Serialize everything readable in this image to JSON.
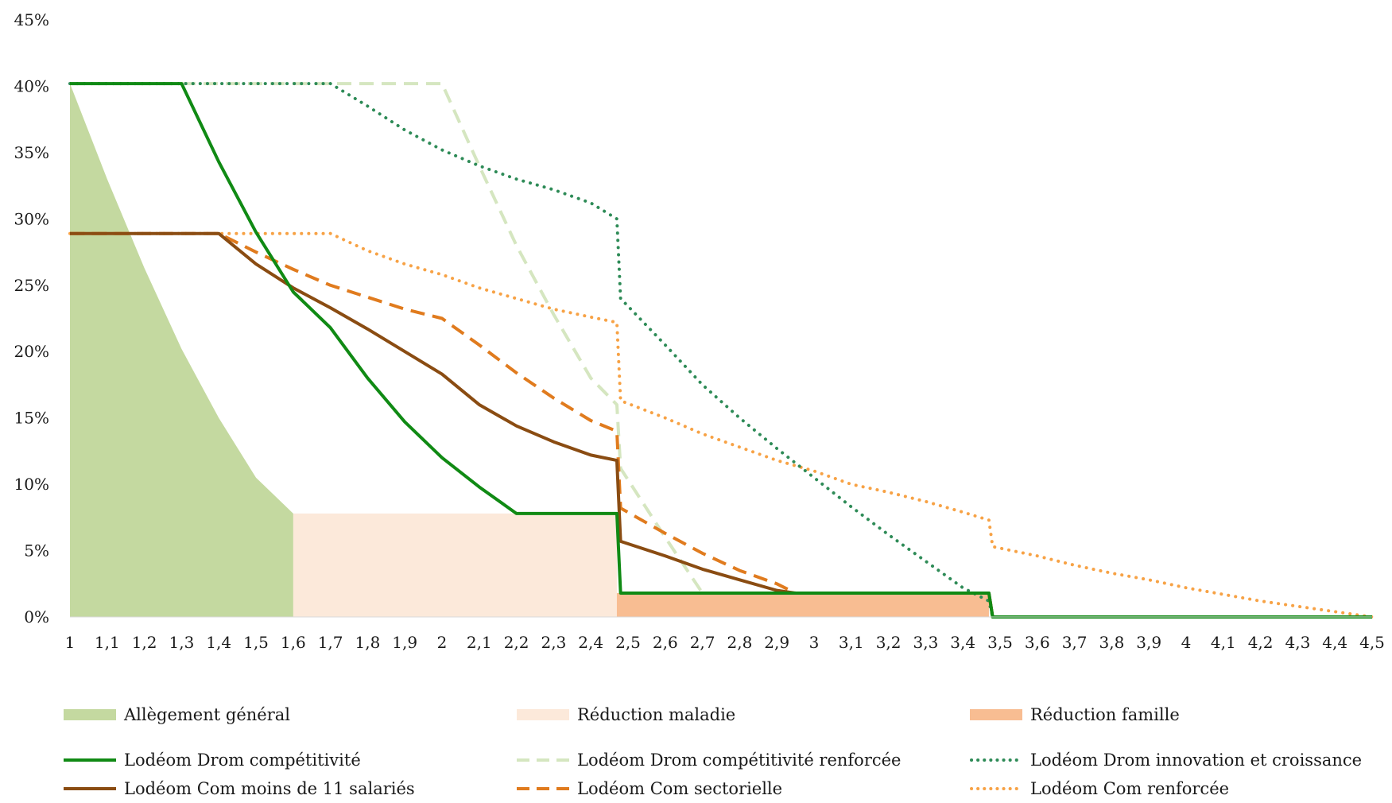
{
  "chart_data": {
    "type": "line",
    "title": "",
    "xlabel": "",
    "ylabel": "",
    "xlim": [
      1,
      4.5
    ],
    "ylim": [
      0,
      0.45
    ],
    "x_ticks": [
      "1",
      "1,1",
      "1,2",
      "1,3",
      "1,4",
      "1,5",
      "1,6",
      "1,7",
      "1,8",
      "1,9",
      "2",
      "2,1",
      "2,2",
      "2,3",
      "2,4",
      "2,5",
      "2,6",
      "2,7",
      "2,8",
      "2,9",
      "3",
      "3,1",
      "3,2",
      "3,3",
      "3,4",
      "3,5",
      "3,6",
      "3,7",
      "3,8",
      "3,9",
      "4",
      "4,1",
      "4,2",
      "4,3",
      "4,4",
      "4,5"
    ],
    "y_ticks": [
      "0%",
      "5%",
      "10%",
      "15%",
      "20%",
      "25%",
      "30%",
      "35%",
      "40%",
      "45%"
    ],
    "y_tick_values": [
      0,
      0.05,
      0.1,
      0.15,
      0.2,
      0.25,
      0.3,
      0.35,
      0.4,
      0.45
    ],
    "grid": false,
    "legend_position": "bottom",
    "areas": [
      {
        "name": "Réduction famille",
        "color": "#f8bd92",
        "points": [
          [
            1,
            0.018
          ],
          [
            2.47,
            0.018
          ],
          [
            2.47,
            0.018
          ],
          [
            3.47,
            0.018
          ],
          [
            3.47,
            0
          ]
        ]
      },
      {
        "name": "Réduction maladie",
        "color": "#fce9da",
        "points": [
          [
            1,
            0.078
          ],
          [
            2.47,
            0.078
          ],
          [
            2.47,
            0.018
          ]
        ]
      },
      {
        "name": "Allègement général",
        "color": "#c4d9a0",
        "points": [
          [
            1,
            0.402
          ],
          [
            1.1,
            0.33
          ],
          [
            1.2,
            0.263
          ],
          [
            1.3,
            0.202
          ],
          [
            1.4,
            0.15
          ],
          [
            1.5,
            0.105
          ],
          [
            1.6,
            0.078
          ]
        ]
      }
    ],
    "series": [
      {
        "name": "Lodéom Drom compétitivité",
        "color": "#108a14",
        "style": "solid",
        "points": [
          [
            1,
            0.402
          ],
          [
            1.3,
            0.402
          ],
          [
            1.4,
            0.343
          ],
          [
            1.5,
            0.29
          ],
          [
            1.6,
            0.245
          ],
          [
            1.7,
            0.218
          ],
          [
            1.8,
            0.18
          ],
          [
            1.9,
            0.147
          ],
          [
            2,
            0.12
          ],
          [
            2.1,
            0.098
          ],
          [
            2.2,
            0.078
          ],
          [
            2.47,
            0.078
          ],
          [
            2.48,
            0.018
          ],
          [
            3.47,
            0.018
          ],
          [
            3.48,
            0
          ],
          [
            4.5,
            0
          ]
        ]
      },
      {
        "name": "Lodéom Drom compétitivité renforcée",
        "color": "#d5e6c0",
        "style": "dashed",
        "points": [
          [
            1,
            0.402
          ],
          [
            2,
            0.402
          ],
          [
            2.1,
            0.34
          ],
          [
            2.2,
            0.28
          ],
          [
            2.3,
            0.228
          ],
          [
            2.4,
            0.18
          ],
          [
            2.47,
            0.16
          ],
          [
            2.48,
            0.112
          ],
          [
            2.6,
            0.06
          ],
          [
            2.7,
            0.018
          ],
          [
            3.47,
            0.018
          ],
          [
            3.48,
            0
          ],
          [
            4.5,
            0
          ]
        ]
      },
      {
        "name": "Lodéom Drom innovation et croissance",
        "color": "#2e8b57",
        "style": "dotted",
        "points": [
          [
            1,
            0.402
          ],
          [
            1.7,
            0.402
          ],
          [
            1.8,
            0.385
          ],
          [
            1.9,
            0.367
          ],
          [
            2,
            0.352
          ],
          [
            2.1,
            0.34
          ],
          [
            2.2,
            0.33
          ],
          [
            2.3,
            0.322
          ],
          [
            2.4,
            0.312
          ],
          [
            2.47,
            0.3
          ],
          [
            2.48,
            0.24
          ],
          [
            2.6,
            0.205
          ],
          [
            2.7,
            0.175
          ],
          [
            2.8,
            0.15
          ],
          [
            2.9,
            0.127
          ],
          [
            3,
            0.105
          ],
          [
            3.1,
            0.083
          ],
          [
            3.2,
            0.062
          ],
          [
            3.3,
            0.042
          ],
          [
            3.4,
            0.022
          ],
          [
            3.47,
            0.012
          ],
          [
            3.48,
            0
          ],
          [
            4.5,
            0
          ]
        ]
      },
      {
        "name": "Lodéom Com moins de 11 salariés",
        "color": "#8a4c12",
        "style": "solid",
        "points": [
          [
            1,
            0.289
          ],
          [
            1.4,
            0.289
          ],
          [
            1.5,
            0.266
          ],
          [
            1.6,
            0.248
          ],
          [
            1.7,
            0.233
          ],
          [
            1.8,
            0.217
          ],
          [
            1.9,
            0.2
          ],
          [
            2,
            0.183
          ],
          [
            2.1,
            0.16
          ],
          [
            2.2,
            0.144
          ],
          [
            2.3,
            0.132
          ],
          [
            2.4,
            0.122
          ],
          [
            2.47,
            0.118
          ],
          [
            2.48,
            0.057
          ],
          [
            2.6,
            0.046
          ],
          [
            2.7,
            0.036
          ],
          [
            2.8,
            0.028
          ],
          [
            2.9,
            0.02
          ],
          [
            2.95,
            0.018
          ],
          [
            3.47,
            0.018
          ],
          [
            3.48,
            0
          ],
          [
            4.5,
            0
          ]
        ]
      },
      {
        "name": "Lodéom Com sectorielle",
        "color": "#e07b1e",
        "style": "dashed",
        "points": [
          [
            1,
            0.289
          ],
          [
            1.4,
            0.289
          ],
          [
            1.5,
            0.275
          ],
          [
            1.6,
            0.262
          ],
          [
            1.7,
            0.25
          ],
          [
            1.8,
            0.241
          ],
          [
            1.9,
            0.232
          ],
          [
            2,
            0.225
          ],
          [
            2.1,
            0.205
          ],
          [
            2.2,
            0.184
          ],
          [
            2.3,
            0.165
          ],
          [
            2.4,
            0.148
          ],
          [
            2.47,
            0.14
          ],
          [
            2.48,
            0.082
          ],
          [
            2.6,
            0.063
          ],
          [
            2.7,
            0.048
          ],
          [
            2.8,
            0.035
          ],
          [
            2.9,
            0.025
          ],
          [
            2.95,
            0.018
          ],
          [
            3.47,
            0.018
          ],
          [
            3.48,
            0
          ],
          [
            4.5,
            0
          ]
        ]
      },
      {
        "name": "Lodéom Com renforcée",
        "color": "#f7a245",
        "style": "dotted",
        "points": [
          [
            1,
            0.289
          ],
          [
            1.7,
            0.289
          ],
          [
            1.8,
            0.276
          ],
          [
            1.9,
            0.266
          ],
          [
            2,
            0.258
          ],
          [
            2.1,
            0.248
          ],
          [
            2.2,
            0.24
          ],
          [
            2.3,
            0.232
          ],
          [
            2.4,
            0.226
          ],
          [
            2.47,
            0.222
          ],
          [
            2.48,
            0.163
          ],
          [
            2.6,
            0.15
          ],
          [
            2.7,
            0.138
          ],
          [
            2.8,
            0.128
          ],
          [
            2.9,
            0.118
          ],
          [
            3,
            0.11
          ],
          [
            3.1,
            0.1
          ],
          [
            3.2,
            0.094
          ],
          [
            3.3,
            0.087
          ],
          [
            3.4,
            0.079
          ],
          [
            3.47,
            0.073
          ],
          [
            3.48,
            0.053
          ],
          [
            3.6,
            0.046
          ],
          [
            3.7,
            0.039
          ],
          [
            3.8,
            0.033
          ],
          [
            3.9,
            0.028
          ],
          [
            4,
            0.022
          ],
          [
            4.1,
            0.017
          ],
          [
            4.2,
            0.012
          ],
          [
            4.3,
            0.008
          ],
          [
            4.4,
            0.004
          ],
          [
            4.5,
            0
          ]
        ]
      }
    ],
    "legend": [
      {
        "label": "Allègement général",
        "kind": "area",
        "color": "#c4d9a0"
      },
      {
        "label": "Réduction maladie",
        "kind": "area",
        "color": "#fce9da"
      },
      {
        "label": "Réduction famille",
        "kind": "area",
        "color": "#f8bd92"
      },
      {
        "label": "Lodéom Drom compétitivité",
        "kind": "solid",
        "color": "#108a14"
      },
      {
        "label": "Lodéom Drom compétitivité renforcée",
        "kind": "dashed",
        "color": "#d5e6c0"
      },
      {
        "label": "Lodéom Drom innovation et croissance",
        "kind": "dotted",
        "color": "#2e8b57"
      },
      {
        "label": "Lodéom Com moins de 11 salariés",
        "kind": "solid",
        "color": "#8a4c12"
      },
      {
        "label": "Lodéom Com sectorielle",
        "kind": "dashed",
        "color": "#e07b1e"
      },
      {
        "label": "Lodéom Com renforcée",
        "kind": "dotted",
        "color": "#f7a245"
      }
    ]
  }
}
